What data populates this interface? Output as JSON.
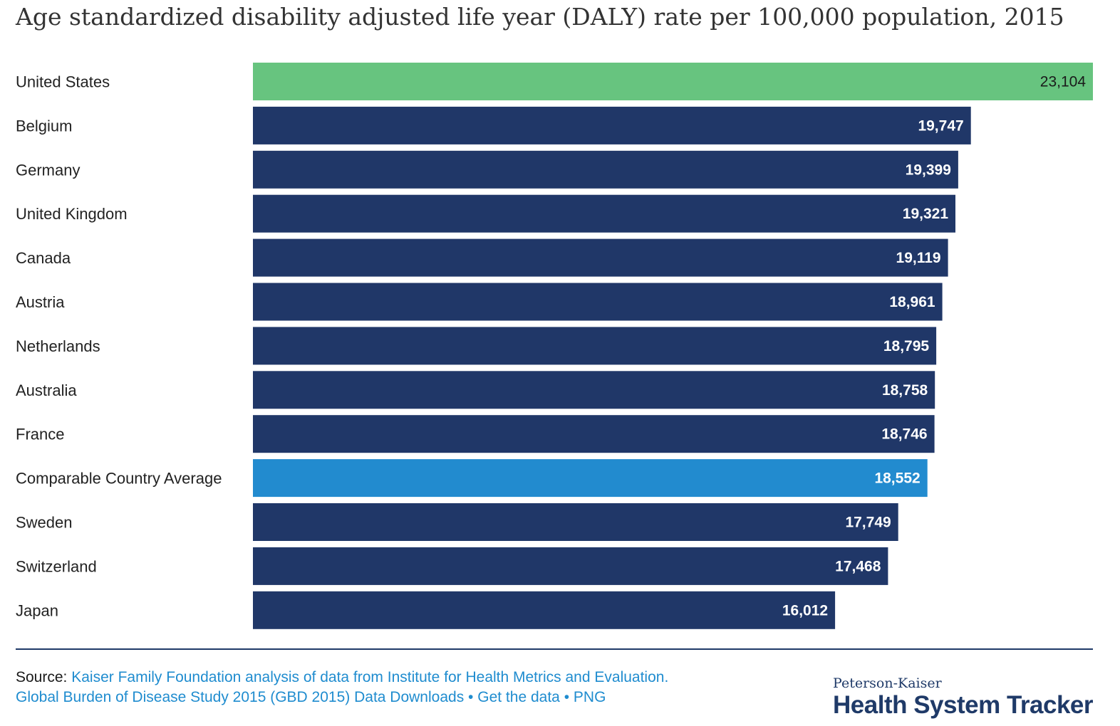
{
  "header": {
    "title": "Age standardized disability adjusted life year (DALY) rate per 100,000 population, 2015"
  },
  "colors": {
    "highlight_us": "#67c47f",
    "highlight_avg": "#228bcf",
    "default_bar": "#203768",
    "label_text": "#222222",
    "value_text_light": "#ffffff",
    "value_text_dark": "#1a1a1a"
  },
  "chart_data": {
    "type": "bar",
    "orientation": "horizontal",
    "title": "Age standardized disability adjusted life year (DALY) rate per 100,000 population, 2015",
    "xlabel": "",
    "ylabel": "",
    "xlim": [
      0,
      23104
    ],
    "categories": [
      "United States",
      "Belgium",
      "Germany",
      "United Kingdom",
      "Canada",
      "Austria",
      "Netherlands",
      "Australia",
      "France",
      "Comparable Country Average",
      "Sweden",
      "Switzerland",
      "Japan"
    ],
    "values": [
      23104,
      19747,
      19399,
      19321,
      19119,
      18961,
      18795,
      18758,
      18746,
      18552,
      17749,
      17468,
      16012
    ],
    "value_labels": [
      "23,104",
      "19,747",
      "19,399",
      "19,321",
      "19,119",
      "18,961",
      "18,795",
      "18,758",
      "18,746",
      "18,552",
      "17,749",
      "17,468",
      "16,012"
    ],
    "highlights": {
      "United States": "us",
      "Comparable Country Average": "avg"
    },
    "grid": false,
    "legend": "none"
  },
  "footer": {
    "source_label": "Source:",
    "source_text": "Kaiser Family Foundation analysis of data from Institute for Health Metrics and Evaluation.",
    "dataset_link": "Global Burden of Disease Study 2015 (GBD 2015) Data Downloads",
    "separator": "•",
    "get_data_link": "Get the data",
    "png_link": "PNG",
    "brand_top": "Peterson-Kaiser",
    "brand_bottom": "Health System Tracker"
  }
}
